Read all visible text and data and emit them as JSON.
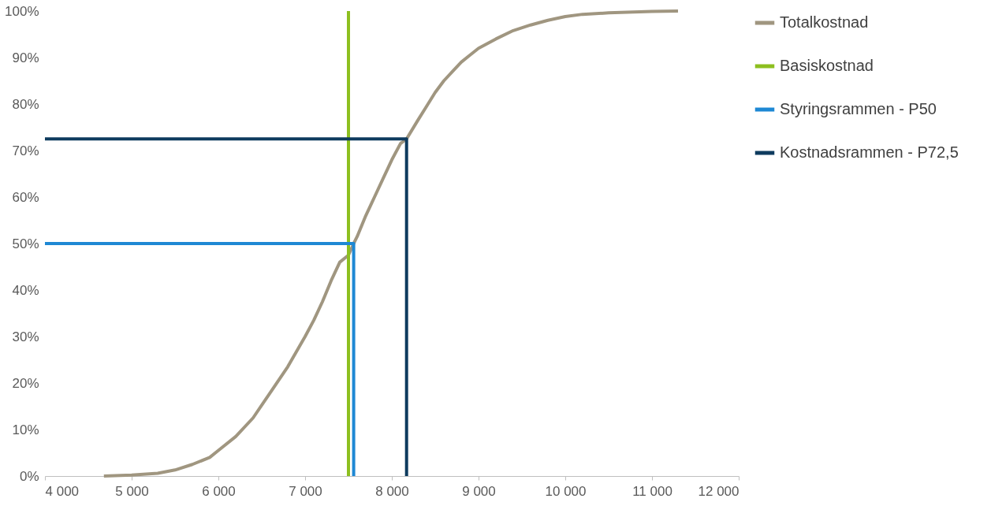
{
  "chart_data": {
    "type": "line",
    "legend": "right",
    "grid": false,
    "line_style": "solid",
    "marker": "none",
    "xlim": [
      4000,
      12000
    ],
    "ylim": [
      0,
      100
    ],
    "xticks": [
      {
        "value": 4000,
        "label": "4 000"
      },
      {
        "value": 5000,
        "label": "5 000"
      },
      {
        "value": 6000,
        "label": "6 000"
      },
      {
        "value": 7000,
        "label": "7 000"
      },
      {
        "value": 8000,
        "label": "8 000"
      },
      {
        "value": 9000,
        "label": "9 000"
      },
      {
        "value": 10000,
        "label": "10 000"
      },
      {
        "value": 11000,
        "label": "11 000"
      },
      {
        "value": 12000,
        "label": "12 000"
      }
    ],
    "yticks": [
      {
        "value": 0,
        "label": "0%"
      },
      {
        "value": 10,
        "label": "10%"
      },
      {
        "value": 20,
        "label": "20%"
      },
      {
        "value": 30,
        "label": "30%"
      },
      {
        "value": 40,
        "label": "40%"
      },
      {
        "value": 50,
        "label": "50%"
      },
      {
        "value": 60,
        "label": "60%"
      },
      {
        "value": 70,
        "label": "70%"
      },
      {
        "value": 80,
        "label": "80%"
      },
      {
        "value": 90,
        "label": "90%"
      },
      {
        "value": 100,
        "label": "100%"
      }
    ],
    "series": [
      {
        "name": "Totalkostnad",
        "color": "#a09680",
        "x": [
          4680,
          5000,
          5300,
          5500,
          5700,
          5900,
          6000,
          6200,
          6400,
          6600,
          6800,
          7000,
          7100,
          7200,
          7300,
          7400,
          7500,
          7560,
          7600,
          7700,
          7800,
          7900,
          8000,
          8100,
          8170,
          8300,
          8400,
          8500,
          8600,
          8700,
          8800,
          8900,
          9000,
          9200,
          9400,
          9600,
          9800,
          10000,
          10200,
          10500,
          11000,
          11300
        ],
        "values": [
          0,
          0.2,
          0.6,
          1.3,
          2.5,
          4,
          5.5,
          8.5,
          12.5,
          18,
          23.5,
          30,
          33.5,
          37.5,
          42,
          46,
          47.5,
          50,
          51.5,
          56,
          60,
          64,
          68,
          71.5,
          72.5,
          76.5,
          79.5,
          82.5,
          85,
          87,
          89,
          90.5,
          92,
          94,
          95.8,
          97,
          98,
          98.8,
          99.3,
          99.6,
          99.9,
          100
        ]
      },
      {
        "name": "Basiskostnad",
        "color": "#8dbf1f",
        "x": [
          7500,
          7500
        ],
        "values": [
          0,
          100
        ]
      },
      {
        "name": "Styringsrammen - P50",
        "color": "#1e88d4",
        "x": [
          4000,
          7560,
          7560
        ],
        "values": [
          50,
          50,
          0
        ]
      },
      {
        "name": "Kostnadsrammen - P72,5",
        "color": "#0e3b5e",
        "x": [
          4000,
          8170,
          8170
        ],
        "values": [
          72.5,
          72.5,
          0
        ]
      }
    ]
  }
}
